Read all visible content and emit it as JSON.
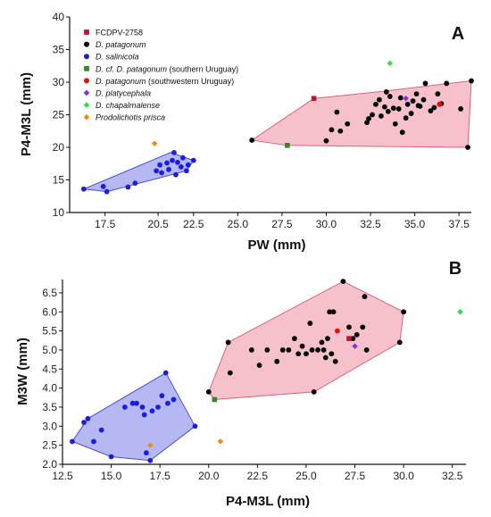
{
  "colors": {
    "pink_fill": "#f4b6c2",
    "pink_stroke": "#d9637e",
    "blue_fill": "#a9acf2",
    "blue_stroke": "#4a4fd0",
    "fcdpv": "#c8102e",
    "patagonum": "#000000",
    "salinicola": "#1d1de0",
    "cf_patagonum": "#2e8b2e",
    "sw_uruguay": "#e01010",
    "platycephala": "#8a2be2",
    "chapalmalense": "#33dd44",
    "prisca": "#f08c00"
  },
  "legend": [
    {
      "key": "fcdpv",
      "marker": "square",
      "color": "#c8102e",
      "text": "FCDPV-2758",
      "italic": "",
      "suffix": ""
    },
    {
      "key": "patagonum",
      "marker": "circle",
      "color": "#000000",
      "text": "",
      "italic": "D. patagonum",
      "suffix": ""
    },
    {
      "key": "salinicola",
      "marker": "circle",
      "color": "#1d1de0",
      "text": "",
      "italic": "D. salinicola",
      "suffix": ""
    },
    {
      "key": "cf_patagonum",
      "marker": "square",
      "color": "#2e8b2e",
      "text": "",
      "italic": "D. cf. D. patagonum",
      "suffix": " (southern Uruguay)"
    },
    {
      "key": "sw_uruguay",
      "marker": "circle",
      "color": "#e01010",
      "text": "",
      "italic": "D. patagonum",
      "suffix": " (southwestern Uruguay)"
    },
    {
      "key": "platycephala",
      "marker": "diamond",
      "color": "#8a2be2",
      "text": "",
      "italic": "D. platycephala",
      "suffix": ""
    },
    {
      "key": "chapalmalense",
      "marker": "diamond",
      "color": "#33dd44",
      "text": "",
      "italic": "D. chapalmalense",
      "suffix": ""
    },
    {
      "key": "prisca",
      "marker": "diamond",
      "color": "#f08c00",
      "text": "",
      "italic": "Prodolichotis prisca",
      "suffix": ""
    }
  ],
  "chart_data": [
    {
      "type": "scatter",
      "panel_label": "A",
      "xlabel": "PW (mm)",
      "ylabel": "P4-M3L (mm)",
      "xlim": [
        15.5,
        38.2
      ],
      "ylim": [
        10,
        40
      ],
      "xticks": [
        "17.5",
        "20.5",
        "22.5",
        "25.0",
        "27.5",
        "30.0",
        "32.5",
        "35.0",
        "37.5"
      ],
      "xtick_values": [
        17.5,
        20.5,
        22.5,
        25.0,
        27.5,
        30.0,
        32.5,
        35.0,
        37.5
      ],
      "yticks": [
        "10",
        "15",
        "20",
        "25",
        "30",
        "35",
        "40"
      ],
      "ytick_values": [
        10,
        15,
        20,
        25,
        30,
        35,
        40
      ],
      "hulls": [
        {
          "group": "patagonum",
          "points": [
            [
              25.8,
              21.1
            ],
            [
              29.3,
              27.5
            ],
            [
              33.2,
              28.6
            ],
            [
              38.2,
              30.2
            ],
            [
              38.0,
              20.0
            ],
            [
              27.8,
              20.3
            ]
          ]
        },
        {
          "group": "salinicola",
          "points": [
            [
              16.3,
              13.6
            ],
            [
              21.2,
              19.2
            ],
            [
              22.5,
              18.0
            ],
            [
              22.1,
              16.4
            ],
            [
              17.6,
              13.2
            ]
          ]
        }
      ],
      "series": [
        {
          "group": "patagonum",
          "marker": "circle",
          "points": [
            [
              25.8,
              21.1
            ],
            [
              30.0,
              21.0
            ],
            [
              30.3,
              22.7
            ],
            [
              30.6,
              25.4
            ],
            [
              30.8,
              22.5
            ],
            [
              31.2,
              23.6
            ],
            [
              32.3,
              23.8
            ],
            [
              32.4,
              24.4
            ],
            [
              32.6,
              25.0
            ],
            [
              32.8,
              26.6
            ],
            [
              33.0,
              27.3
            ],
            [
              33.1,
              24.8
            ],
            [
              33.3,
              26.2
            ],
            [
              33.4,
              28.5
            ],
            [
              33.5,
              25.5
            ],
            [
              33.6,
              27.8
            ],
            [
              33.8,
              26.0
            ],
            [
              33.9,
              23.6
            ],
            [
              34.1,
              25.9
            ],
            [
              34.2,
              27.6
            ],
            [
              34.3,
              22.3
            ],
            [
              34.5,
              24.5
            ],
            [
              34.6,
              26.6
            ],
            [
              34.8,
              25.2
            ],
            [
              34.9,
              27.1
            ],
            [
              35.1,
              28.2
            ],
            [
              35.2,
              26.4
            ],
            [
              35.3,
              26.3
            ],
            [
              35.5,
              27.3
            ],
            [
              35.6,
              29.8
            ],
            [
              35.9,
              25.6
            ],
            [
              36.1,
              26.1
            ],
            [
              36.3,
              28.2
            ],
            [
              36.5,
              26.7
            ],
            [
              36.8,
              29.8
            ],
            [
              37.6,
              25.9
            ],
            [
              38.0,
              20.0
            ],
            [
              38.2,
              30.2
            ]
          ]
        },
        {
          "group": "salinicola",
          "marker": "circle",
          "points": [
            [
              16.3,
              13.6
            ],
            [
              17.4,
              14.0
            ],
            [
              17.6,
              13.2
            ],
            [
              18.8,
              13.9
            ],
            [
              19.2,
              14.5
            ],
            [
              20.4,
              16.4
            ],
            [
              20.6,
              17.3
            ],
            [
              20.7,
              16.1
            ],
            [
              21.0,
              17.6
            ],
            [
              21.1,
              16.6
            ],
            [
              21.3,
              18.0
            ],
            [
              21.4,
              19.2
            ],
            [
              21.5,
              15.8
            ],
            [
              21.6,
              17.7
            ],
            [
              21.8,
              17.0
            ],
            [
              21.9,
              18.4
            ],
            [
              22.1,
              16.4
            ],
            [
              22.2,
              17.3
            ],
            [
              22.5,
              18.0
            ]
          ]
        },
        {
          "group": "fcdpv",
          "marker": "square",
          "points": [
            [
              29.3,
              27.5
            ]
          ]
        },
        {
          "group": "cf_patagonum",
          "marker": "square",
          "points": [
            [
              27.8,
              20.3
            ]
          ]
        },
        {
          "group": "sw_uruguay",
          "marker": "circle",
          "points": [
            [
              36.4,
              26.6
            ]
          ]
        },
        {
          "group": "platycephala",
          "marker": "diamond",
          "points": [
            [
              34.5,
              27.5
            ]
          ]
        },
        {
          "group": "chapalmalense",
          "marker": "diamond",
          "points": [
            [
              33.6,
              32.9
            ]
          ]
        },
        {
          "group": "prisca",
          "marker": "diamond",
          "points": [
            [
              20.3,
              20.6
            ]
          ]
        }
      ]
    },
    {
      "type": "scatter",
      "panel_label": "B",
      "xlabel": "P4-M3L (mm)",
      "ylabel": "M3W (mm)",
      "xlim": [
        12.5,
        33.2
      ],
      "ylim": [
        2.0,
        6.85
      ],
      "xticks": [
        "12.5",
        "15.0",
        "17.5",
        "20.0",
        "22.5",
        "25.0",
        "27.5",
        "30.0",
        "32.5"
      ],
      "xtick_values": [
        12.5,
        15.0,
        17.5,
        20.0,
        22.5,
        25.0,
        27.5,
        30.0,
        32.5
      ],
      "yticks": [
        "2.0",
        "2.5",
        "3.0",
        "3.5",
        "4.0",
        "4.5",
        "5.0",
        "5.5",
        "6.0",
        "6.5"
      ],
      "ytick_values": [
        2.0,
        2.5,
        3.0,
        3.5,
        4.0,
        4.5,
        5.0,
        5.5,
        6.0,
        6.5
      ],
      "hulls": [
        {
          "group": "patagonum",
          "points": [
            [
              20.0,
              3.9
            ],
            [
              21.0,
              5.2
            ],
            [
              26.9,
              6.8
            ],
            [
              30.0,
              6.0
            ],
            [
              29.8,
              5.2
            ],
            [
              25.4,
              3.9
            ],
            [
              20.3,
              3.7
            ]
          ]
        },
        {
          "group": "salinicola",
          "points": [
            [
              13.0,
              2.6
            ],
            [
              13.8,
              3.2
            ],
            [
              17.8,
              4.4
            ],
            [
              19.3,
              3.0
            ],
            [
              17.0,
              2.1
            ],
            [
              15.0,
              2.2
            ]
          ]
        }
      ],
      "series": [
        {
          "group": "patagonum",
          "marker": "circle",
          "points": [
            [
              20.0,
              3.9
            ],
            [
              21.0,
              5.2
            ],
            [
              21.1,
              4.4
            ],
            [
              22.2,
              5.0
            ],
            [
              22.6,
              4.6
            ],
            [
              23.0,
              5.0
            ],
            [
              23.5,
              4.7
            ],
            [
              23.8,
              5.0
            ],
            [
              24.1,
              5.0
            ],
            [
              24.4,
              5.3
            ],
            [
              24.6,
              4.9
            ],
            [
              24.8,
              5.1
            ],
            [
              25.0,
              4.9
            ],
            [
              25.2,
              5.7
            ],
            [
              25.3,
              5.0
            ],
            [
              25.4,
              3.9
            ],
            [
              25.6,
              5.0
            ],
            [
              25.8,
              5.2
            ],
            [
              25.9,
              5.0
            ],
            [
              26.0,
              4.8
            ],
            [
              26.1,
              5.3
            ],
            [
              26.2,
              6.0
            ],
            [
              26.3,
              4.9
            ],
            [
              26.4,
              6.0
            ],
            [
              26.5,
              4.7
            ],
            [
              26.9,
              6.8
            ],
            [
              27.2,
              5.6
            ],
            [
              27.4,
              5.3
            ],
            [
              27.6,
              5.4
            ],
            [
              27.9,
              5.6
            ],
            [
              28.0,
              6.4
            ],
            [
              28.1,
              5.0
            ],
            [
              29.8,
              5.2
            ],
            [
              30.0,
              6.0
            ]
          ]
        },
        {
          "group": "salinicola",
          "marker": "circle",
          "points": [
            [
              13.0,
              2.6
            ],
            [
              13.6,
              3.1
            ],
            [
              13.8,
              3.2
            ],
            [
              14.1,
              2.6
            ],
            [
              14.5,
              2.9
            ],
            [
              15.0,
              2.2
            ],
            [
              15.7,
              3.5
            ],
            [
              16.1,
              3.6
            ],
            [
              16.3,
              3.6
            ],
            [
              16.6,
              3.5
            ],
            [
              16.7,
              3.3
            ],
            [
              16.8,
              2.3
            ],
            [
              17.0,
              2.1
            ],
            [
              17.1,
              3.4
            ],
            [
              17.4,
              3.5
            ],
            [
              17.6,
              3.8
            ],
            [
              17.8,
              4.4
            ],
            [
              17.9,
              3.6
            ],
            [
              18.2,
              3.7
            ],
            [
              19.3,
              3.0
            ]
          ]
        },
        {
          "group": "fcdpv",
          "marker": "square",
          "points": [
            [
              27.2,
              5.3
            ]
          ]
        },
        {
          "group": "cf_patagonum",
          "marker": "square",
          "points": [
            [
              20.3,
              3.7
            ]
          ]
        },
        {
          "group": "sw_uruguay",
          "marker": "circle",
          "points": [
            [
              26.6,
              5.5
            ]
          ]
        },
        {
          "group": "platycephala",
          "marker": "diamond",
          "points": [
            [
              27.5,
              5.1
            ]
          ]
        },
        {
          "group": "chapalmalense",
          "marker": "diamond",
          "points": [
            [
              32.9,
              6.0
            ]
          ]
        },
        {
          "group": "prisca",
          "marker": "diamond",
          "points": [
            [
              17.0,
              2.5
            ],
            [
              20.6,
              2.6
            ]
          ]
        }
      ]
    }
  ]
}
